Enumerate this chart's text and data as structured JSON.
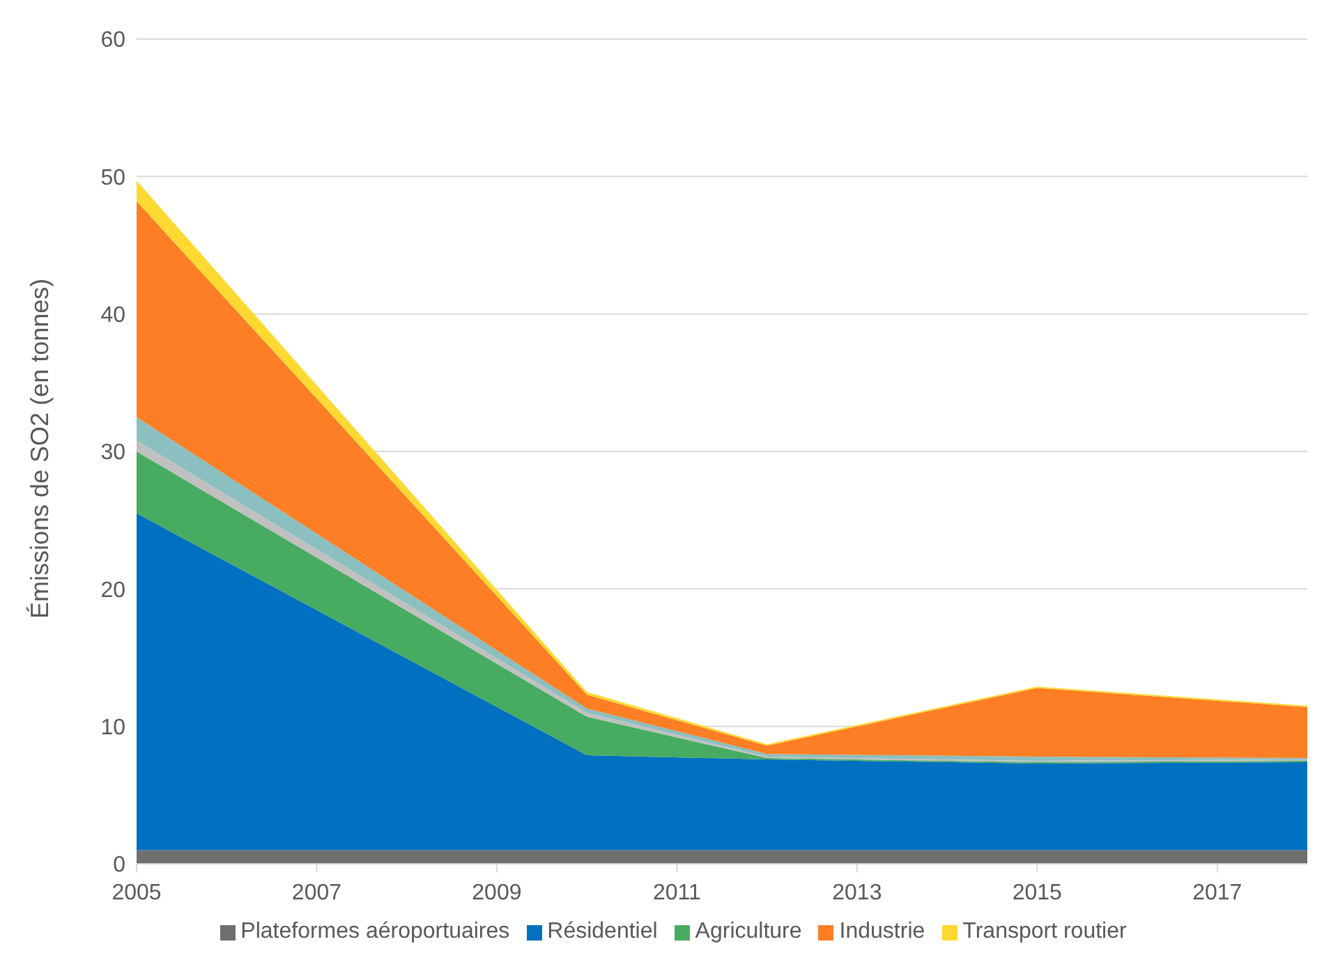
{
  "chart_data": {
    "type": "area",
    "stacked": true,
    "ylabel": "Émissions de SO2 (en tonnes)",
    "x": [
      2005,
      2010,
      2012,
      2015,
      2018
    ],
    "xlim": [
      2005,
      2018
    ],
    "xticks": [
      2005,
      2007,
      2009,
      2011,
      2013,
      2015,
      2017
    ],
    "ylim": [
      0,
      60
    ],
    "yticks": [
      0,
      10,
      20,
      30,
      40,
      50,
      60
    ],
    "grid": "y",
    "legend": "bottom",
    "series": [
      {
        "name": "Plateformes aéroportuaires",
        "color": "#6f6f6f",
        "values": [
          1.0,
          1.0,
          1.0,
          1.0,
          1.0
        ]
      },
      {
        "name": "Résidentiel",
        "color": "#0070c0",
        "values": [
          24.5,
          6.9,
          6.6,
          6.3,
          6.4
        ]
      },
      {
        "name": "Agriculture",
        "color": "#47ab61",
        "values": [
          4.5,
          2.8,
          0.1,
          0.1,
          0.1
        ]
      },
      {
        "color": "#c0c0c0",
        "values": [
          0.8,
          0.3,
          0.1,
          0.1,
          0.1
        ]
      },
      {
        "color": "#8cbfbf",
        "values": [
          1.7,
          0.3,
          0.2,
          0.3,
          0.1
        ]
      },
      {
        "name": "Industrie",
        "color": "#fd7e24",
        "values": [
          15.7,
          1.0,
          0.6,
          5.0,
          3.7
        ]
      },
      {
        "name": "Transport routier",
        "color": "#fed932",
        "values": [
          1.5,
          0.2,
          0.1,
          0.1,
          0.1
        ]
      }
    ]
  }
}
